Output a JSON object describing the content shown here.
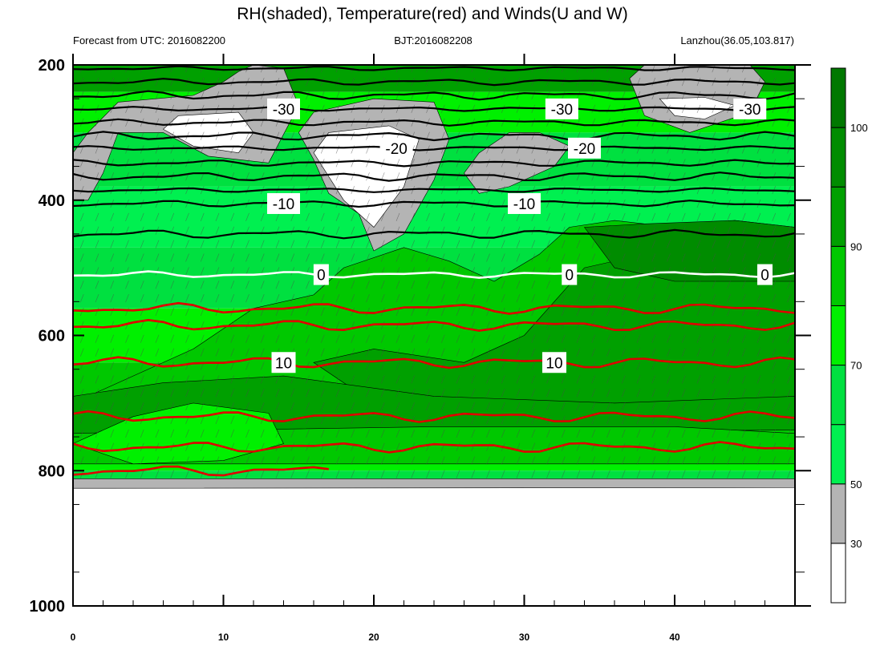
{
  "chart_data": {
    "type": "contour",
    "title": "RH(shaded), Temperature(red) and Winds(U and W)",
    "subtitle_left": "Forecast from UTC: 2016082200",
    "subtitle_center": "BJT:2016082208",
    "subtitle_right": "Lanzhou(36.05,103.817)",
    "x_ticks": [
      "0",
      "10",
      "20",
      "30",
      "40"
    ],
    "x_range": [
      0,
      48
    ],
    "y_ticks": [
      "200",
      "400",
      "600",
      "800",
      "1000"
    ],
    "y_range": [
      200,
      1000
    ],
    "y_reversed": true,
    "colorbar": {
      "ticks": [
        "30",
        "50",
        "70",
        "90",
        "100"
      ],
      "levels": [
        {
          "min": 0,
          "max": 30,
          "color": "#ffffff"
        },
        {
          "min": 30,
          "max": 50,
          "color": "#b4b4b4"
        },
        {
          "min": 50,
          "max": 60,
          "color": "#00f050"
        },
        {
          "min": 60,
          "max": 70,
          "color": "#00e040"
        },
        {
          "min": 70,
          "max": 80,
          "color": "#00f000"
        },
        {
          "min": 80,
          "max": 90,
          "color": "#00c800"
        },
        {
          "min": 90,
          "max": 95,
          "color": "#00a000"
        },
        {
          "min": 95,
          "max": 100,
          "color": "#008c00"
        },
        {
          "min": 100,
          "max": 105,
          "color": "#007800"
        }
      ]
    },
    "temperature_contours": [
      {
        "value": -30,
        "color": "#000000",
        "level_pressure": 265,
        "labels": [
          {
            "text": "-30",
            "x": 14
          },
          {
            "text": "-30",
            "x": 32.5
          },
          {
            "text": "-30",
            "x": 45
          }
        ]
      },
      {
        "value": -20,
        "color": "#000000",
        "level_pressure": 323,
        "labels": [
          {
            "text": "-20",
            "x": 21.5
          },
          {
            "text": "-20",
            "x": 34
          }
        ]
      },
      {
        "value": -10,
        "color": "#000000",
        "level_pressure": 405,
        "labels": [
          {
            "text": "-10",
            "x": 14
          },
          {
            "text": "-10",
            "x": 30
          }
        ]
      },
      {
        "value": 0,
        "color": "#ffffff",
        "level_pressure": 510,
        "labels": [
          {
            "text": "0",
            "x": 16.5
          },
          {
            "text": "0",
            "x": 33
          },
          {
            "text": "0",
            "x": 46
          }
        ]
      },
      {
        "value": 10,
        "color": "#e00000",
        "level_pressure": 640,
        "labels": [
          {
            "text": "10",
            "x": 14
          },
          {
            "text": "10",
            "x": 32
          }
        ]
      }
    ]
  }
}
